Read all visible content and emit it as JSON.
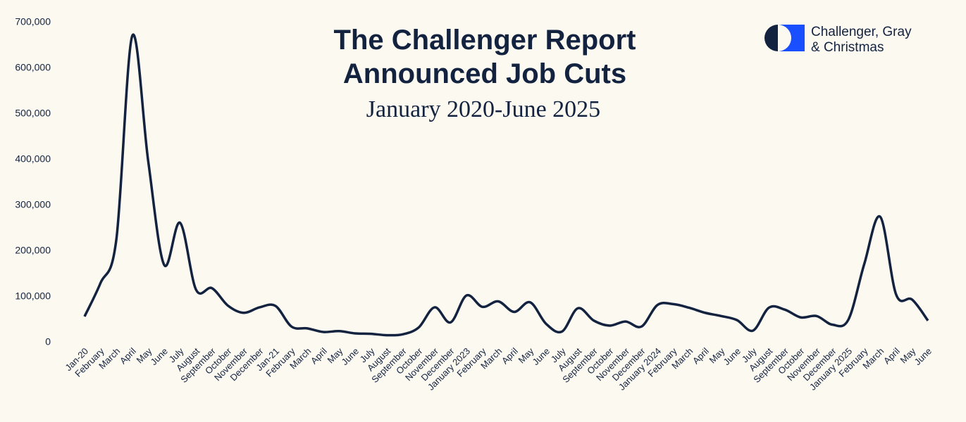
{
  "chart_data": {
    "type": "line",
    "title": "The Challenger Report",
    "title_line2": "Announced Job Cuts",
    "subtitle": "January 2020-June 2025",
    "brand": [
      "Challenger, Gray",
      "& Christmas"
    ],
    "categories": [
      "Jan-20",
      "February",
      "March",
      "April",
      "May",
      "June",
      "July",
      "August",
      "September",
      "October",
      "November",
      "December",
      "Jan-21",
      "February",
      "March",
      "April",
      "May",
      "June",
      "July",
      "August",
      "September",
      "October",
      "November",
      "December",
      "January 2023",
      "February",
      "March",
      "April",
      "May",
      "June",
      "July",
      "August",
      "September",
      "October",
      "November",
      "December",
      "January 2024",
      "February",
      "March",
      "April",
      "May",
      "June",
      "July",
      "August",
      "September",
      "October",
      "November",
      "December",
      "January 2025",
      "February",
      "March",
      "April",
      "May",
      "June"
    ],
    "series": [
      {
        "name": "Announced Job Cuts",
        "color": "#13233f",
        "values": [
          57000,
          130000,
          226000,
          671000,
          397000,
          170000,
          262000,
          116000,
          119000,
          81000,
          65000,
          77000,
          80000,
          35000,
          31000,
          23000,
          25000,
          20000,
          19000,
          16000,
          18000,
          33000,
          77000,
          44000,
          103000,
          78000,
          90000,
          67000,
          88000,
          41000,
          24000,
          75000,
          48000,
          37000,
          46000,
          35000,
          82000,
          84000,
          76000,
          65000,
          58000,
          49000,
          26000,
          76000,
          72000,
          55000,
          58000,
          39000,
          50000,
          172000,
          275000,
          105000,
          94000,
          48000
        ]
      }
    ],
    "ylim": [
      0,
      700000
    ],
    "yticks": [
      0,
      {
        "value": 100000,
        "label": "100,000"
      },
      {
        "value": 200000,
        "label": "200,000"
      },
      {
        "value": 300000,
        "label": "300,000"
      },
      {
        "value": 400000,
        "label": "400,000"
      },
      {
        "value": 500000,
        "label": "500,000"
      },
      {
        "value": 600000,
        "label": "600,000"
      },
      {
        "value": 700000,
        "label": "700,000"
      }
    ],
    "grid": false
  }
}
